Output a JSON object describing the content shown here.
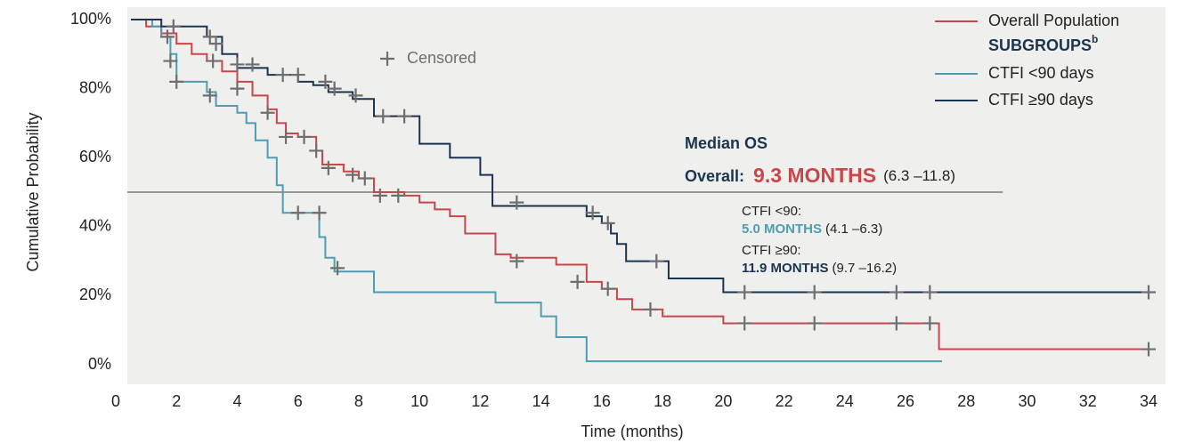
{
  "chart_data": {
    "type": "step",
    "x_label": "Time (months)",
    "y_label": "Cumulative Probability",
    "xlim": [
      0,
      34
    ],
    "ylim": [
      0,
      100
    ],
    "xticks": [
      0,
      2,
      4,
      6,
      8,
      10,
      12,
      14,
      16,
      18,
      20,
      22,
      24,
      26,
      28,
      30,
      32,
      34
    ],
    "yticks": [
      {
        "value": 0,
        "label": "0%"
      },
      {
        "value": 20,
        "label": "20%"
      },
      {
        "value": 40,
        "label": "40%"
      },
      {
        "value": 60,
        "label": "60%"
      },
      {
        "value": 80,
        "label": "80%"
      },
      {
        "value": 100,
        "label": "100%"
      }
    ],
    "censor_label": "Censored",
    "censor_color": "#6e6e6e",
    "legend_group_title": "SUBGROUPS",
    "legend_group_superscript": "b",
    "reference_line": {
      "y": 50,
      "x_end": 29.2,
      "color": "#7a7a7a"
    },
    "series": [
      {
        "name": "Overall Population",
        "color": "#c8474a",
        "x": [
          0.5,
          1,
          1.5,
          2,
          2.5,
          3,
          3.5,
          4,
          4.5,
          5,
          5.3,
          5.6,
          6,
          6.6,
          6.8,
          7.5,
          8,
          8.5,
          9.5,
          10,
          10.5,
          11,
          11.5,
          12.5,
          13,
          14.5,
          15.5,
          16,
          16.5,
          17,
          18,
          20,
          27,
          27.1,
          34
        ],
        "values": [
          100,
          98,
          96,
          93,
          90,
          88,
          85,
          82,
          78,
          74,
          70,
          67,
          66,
          62,
          58,
          56,
          54,
          50,
          49,
          47,
          45,
          43,
          38,
          32,
          31,
          29,
          24,
          22,
          19,
          16,
          14,
          12,
          12,
          4.5,
          4.5
        ],
        "censor_x": [
          1.7,
          3.2,
          4,
          5,
          5.6,
          6.2,
          6.6,
          7,
          7.8,
          8.2,
          8.7,
          9.3,
          13.2,
          15.2,
          16.2,
          17.6,
          20.7,
          23,
          25.7,
          26.8,
          34
        ],
        "censor_y": [
          95,
          88,
          80,
          73,
          66,
          66,
          62,
          57,
          55,
          54,
          49,
          49,
          30,
          24,
          22,
          16,
          12,
          12,
          12,
          12,
          4.5
        ]
      },
      {
        "name": "CTFI <90 days",
        "color": "#4e9db3",
        "x": [
          0.5,
          1.2,
          1.5,
          1.8,
          2,
          3,
          3.3,
          4,
          4.3,
          4.6,
          5,
          5.3,
          5.5,
          6.5,
          6.7,
          6.9,
          7.2,
          8.5,
          12.5,
          14,
          14.5,
          15.5,
          27.2
        ],
        "values": [
          100,
          98,
          95,
          90,
          82,
          79,
          75,
          73,
          70,
          65,
          60,
          52,
          44,
          44,
          37,
          31,
          27,
          21,
          18,
          14,
          8,
          1,
          1
        ],
        "censor_x": [
          1.8,
          2,
          3.1,
          6,
          6.7,
          7.3
        ],
        "censor_y": [
          88,
          82,
          78,
          44,
          44,
          28
        ]
      },
      {
        "name": "CTFI ≥90 days",
        "color": "#1b3550",
        "x": [
          0.5,
          1.5,
          3,
          3.5,
          4,
          5,
          6,
          6.5,
          7,
          7.8,
          8.5,
          10,
          11,
          12,
          12.4,
          15.5,
          16,
          16.3,
          16.5,
          16.8,
          18.2,
          20,
          34
        ],
        "values": [
          100,
          98,
          95,
          90,
          86,
          84,
          82,
          81,
          79,
          77,
          72,
          64,
          60,
          55,
          46,
          43,
          41,
          38,
          35,
          30,
          25,
          21,
          21
        ],
        "censor_x": [
          1.9,
          3.1,
          3.3,
          4,
          4.5,
          5.5,
          6,
          6.9,
          7.2,
          7.9,
          8.8,
          9.5,
          13.2,
          15.7,
          16.2,
          17.8,
          20.7,
          23,
          25.7,
          26.8,
          34
        ],
        "censor_y": [
          98,
          95,
          93,
          87,
          87,
          84,
          84,
          82,
          80,
          78,
          72,
          72,
          47,
          44,
          41,
          30,
          21,
          21,
          21,
          21,
          21
        ]
      }
    ],
    "annotations": {
      "heading": "Median OS",
      "overall_label": "Overall:",
      "overall_value": "9.3 MONTHS",
      "overall_ci": "(6.3 –11.8)",
      "lt90_label": "CTFI <90:",
      "lt90_value": "5.0 MONTHS",
      "lt90_ci": "(4.1 –6.3)",
      "ge90_label": "CTFI ≥90:",
      "ge90_value": "11.9 MONTHS",
      "ge90_ci": "(9.7 –16.2)"
    }
  }
}
